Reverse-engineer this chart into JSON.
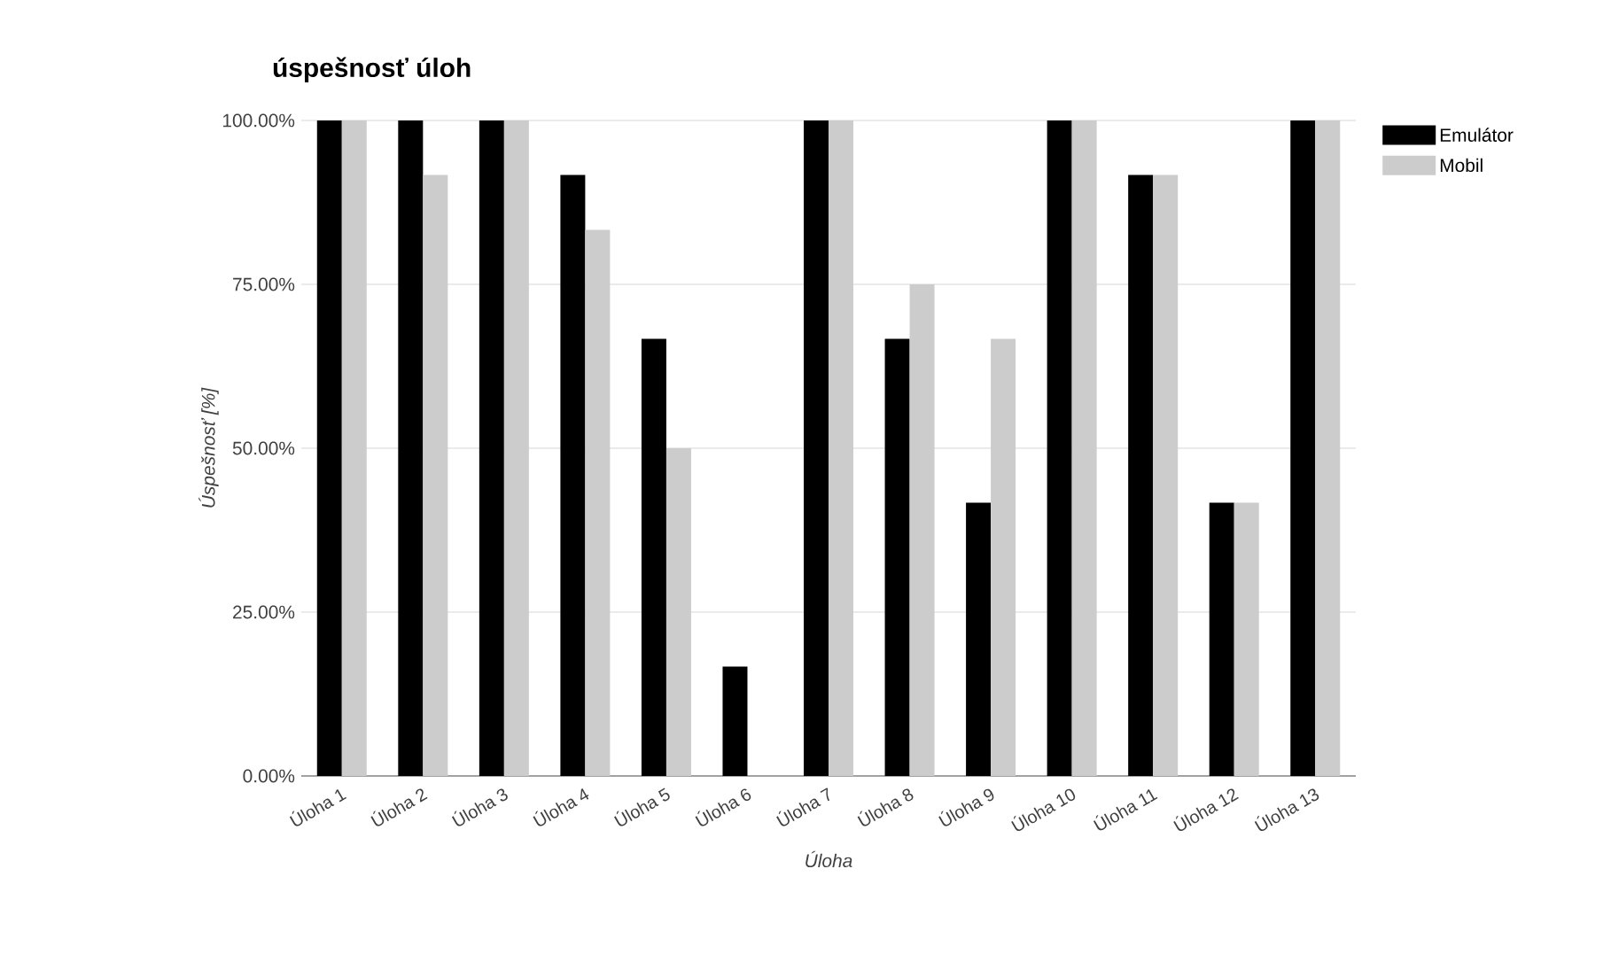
{
  "chart_data": {
    "type": "bar",
    "title": "úspešnosť úloh",
    "xlabel": "Úloha",
    "ylabel": "Úspešnosť [%]",
    "categories": [
      "Úloha 1",
      "Úloha 2",
      "Úloha 3",
      "Úloha 4",
      "Úloha 5",
      "Úloha 6",
      "Úloha 7",
      "Úloha 8",
      "Úloha 9",
      "Úloha 10",
      "Úloha 11",
      "Úloha 12",
      "Úloha 13"
    ],
    "series": [
      {
        "name": "Emulátor",
        "color": "#000000",
        "values": [
          100,
          100,
          100,
          91.7,
          66.7,
          16.7,
          100,
          66.7,
          41.7,
          100,
          91.7,
          41.7,
          100
        ]
      },
      {
        "name": "Mobil",
        "color": "#cccccc",
        "values": [
          100,
          91.7,
          100,
          83.3,
          50,
          0,
          100,
          75,
          66.7,
          100,
          91.7,
          41.7,
          100
        ]
      }
    ],
    "ylim": [
      0,
      100
    ],
    "yticks": [
      {
        "value": 0,
        "label": "0.00%"
      },
      {
        "value": 25,
        "label": "25.00%"
      },
      {
        "value": 50,
        "label": "50.00%"
      },
      {
        "value": 75,
        "label": "75.00%"
      },
      {
        "value": 100,
        "label": "100.00%"
      }
    ],
    "grid": "y",
    "legend": "top right"
  }
}
